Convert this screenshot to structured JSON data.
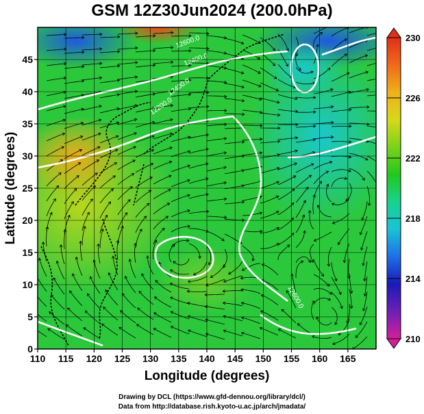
{
  "title": "GSM 12Z30Jun2024 (200.0hPa)",
  "x_axis": {
    "label": "Longitude (degrees)",
    "ticks": [
      "110",
      "115",
      "120",
      "125",
      "130",
      "135",
      "140",
      "145",
      "150",
      "155",
      "160",
      "165"
    ],
    "range": [
      110,
      170
    ]
  },
  "y_axis": {
    "label": "Latitude  (degrees)",
    "ticks": [
      "0",
      "5",
      "10",
      "15",
      "20",
      "25",
      "30",
      "35",
      "40",
      "45"
    ],
    "range": [
      0,
      50
    ]
  },
  "colorbar": {
    "ticks": [
      "230",
      "226",
      "222",
      "218",
      "214",
      "210"
    ],
    "range": [
      210,
      230
    ],
    "colors": [
      "#d41f9a",
      "#6d1fb5",
      "#1a1ab8",
      "#1e6fe8",
      "#19c3d6",
      "#18d28c",
      "#22c81e",
      "#7ad21a",
      "#d8d81a",
      "#f0b01a",
      "#f06a1a",
      "#e0301a"
    ]
  },
  "contours": {
    "labels": [
      "12600.0",
      "12400.0",
      "12200.0",
      "12400.0",
      "12600.0"
    ],
    "color": "#ffffff"
  },
  "field": {
    "background": "#2cc83c",
    "warm_region": "#f0a81a",
    "cool_region": "#19c8d2",
    "cold_region": "#1e5ae0"
  },
  "credits": [
    "Drawing by DCL (https://www.gfd-dennou.org/library/dcl/)",
    "Data from http://database.rish.kyoto-u.ac.jp/arch/jmadata/"
  ]
}
